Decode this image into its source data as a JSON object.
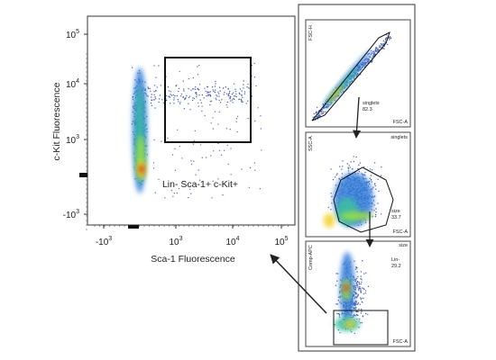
{
  "main_plot": {
    "y_axis_label": "c-Kit Fluorescence",
    "x_axis_label": "Sca-1 Fluorescence",
    "gate_label": "Lin- Sca-1+ c-Kit+",
    "y_tick_labels": [
      {
        "base": "10",
        "exponent": "5"
      },
      {
        "base": "10",
        "exponent": "4"
      },
      {
        "base": "10",
        "exponent": "3"
      },
      {
        "base": "-10",
        "exponent": "3"
      }
    ],
    "x_tick_labels": [
      {
        "base": "-10",
        "exponent": "3"
      },
      {
        "base": "10",
        "exponent": "3"
      },
      {
        "base": "10",
        "exponent": "4"
      },
      {
        "base": "10",
        "exponent": "5"
      }
    ]
  },
  "panels": [
    {
      "y_axis_label": "FSC-H",
      "x_axis_label": "FSC-A",
      "gate_name": "singlets",
      "gate_value": "82.3"
    },
    {
      "title": "singlets",
      "y_axis_label": "SSC-A",
      "x_axis_label": "FSC-A",
      "gate_name": "size",
      "gate_value": "33.7"
    },
    {
      "title": "size",
      "y_axis_label": "Comp-APC",
      "x_axis_label": "FSC-A",
      "gate_name": "Lin-",
      "gate_value": "29.2"
    }
  ]
}
